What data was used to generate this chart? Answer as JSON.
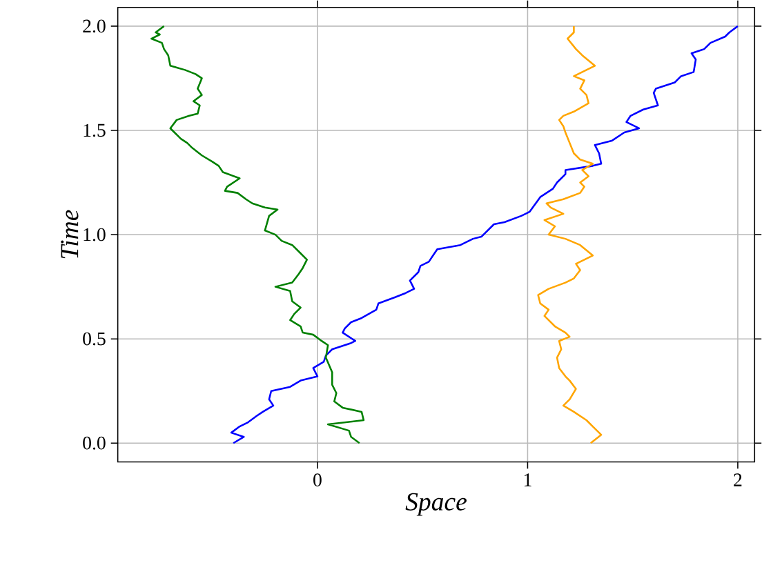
{
  "chart_data": {
    "type": "line",
    "xlabel": "Space",
    "ylabel": "Time",
    "xlim": [
      -0.95,
      2.08
    ],
    "ylim": [
      -0.09,
      2.09
    ],
    "xticks": [
      0,
      1,
      2
    ],
    "yticks": [
      {
        "value": 0,
        "label": "0.0"
      },
      {
        "value": 0.5,
        "label": "0.5"
      },
      {
        "value": 1,
        "label": "1.0"
      },
      {
        "value": 1.5,
        "label": "1.5"
      },
      {
        "value": 2,
        "label": "2.0"
      }
    ],
    "grid": true,
    "series": [
      {
        "color": "#0000ff",
        "x": [
          -0.4,
          -0.35,
          -0.41,
          -0.37,
          -0.33,
          -0.29,
          -0.26,
          -0.21,
          -0.23,
          -0.22,
          -0.13,
          -0.08,
          0.0,
          -0.02,
          0.03,
          0.04,
          0.07,
          0.16,
          0.18,
          0.12,
          0.13,
          0.16,
          0.21,
          0.28,
          0.29,
          0.37,
          0.42,
          0.46,
          0.44,
          0.48,
          0.49,
          0.53,
          0.55,
          0.57,
          0.68,
          0.74,
          0.78,
          0.81,
          0.84,
          0.89,
          0.97,
          1.01,
          1.06,
          1.12,
          1.14,
          1.18,
          1.18,
          1.31,
          1.35,
          1.34,
          1.32,
          1.4,
          1.46,
          1.53,
          1.47,
          1.49,
          1.55,
          1.62,
          1.6,
          1.61,
          1.7,
          1.73,
          1.79,
          1.8,
          1.78,
          1.84,
          1.87,
          1.94,
          1.96,
          2.0
        ],
        "values": [
          0.0,
          0.03,
          0.05,
          0.08,
          0.1,
          0.13,
          0.15,
          0.18,
          0.21,
          0.25,
          0.27,
          0.3,
          0.32,
          0.36,
          0.39,
          0.42,
          0.45,
          0.48,
          0.49,
          0.53,
          0.55,
          0.58,
          0.6,
          0.64,
          0.67,
          0.7,
          0.72,
          0.74,
          0.78,
          0.82,
          0.85,
          0.87,
          0.9,
          0.93,
          0.95,
          0.98,
          0.99,
          1.02,
          1.05,
          1.06,
          1.09,
          1.11,
          1.18,
          1.22,
          1.25,
          1.29,
          1.31,
          1.33,
          1.34,
          1.39,
          1.43,
          1.45,
          1.49,
          1.51,
          1.54,
          1.57,
          1.6,
          1.62,
          1.68,
          1.7,
          1.73,
          1.76,
          1.78,
          1.84,
          1.87,
          1.89,
          1.92,
          1.95,
          1.97,
          2.0
        ]
      },
      {
        "color": "#008000",
        "x": [
          0.2,
          0.16,
          0.15,
          0.05,
          0.22,
          0.21,
          0.12,
          0.08,
          0.09,
          0.07,
          0.07,
          0.04,
          0.05,
          0.02,
          -0.02,
          -0.07,
          -0.08,
          -0.13,
          -0.11,
          -0.08,
          -0.12,
          -0.13,
          -0.2,
          -0.12,
          -0.09,
          -0.07,
          -0.05,
          -0.08,
          -0.12,
          -0.17,
          -0.2,
          -0.25,
          -0.23,
          -0.19,
          -0.25,
          -0.31,
          -0.34,
          -0.38,
          -0.44,
          -0.43,
          -0.37,
          -0.45,
          -0.47,
          -0.5,
          -0.55,
          -0.6,
          -0.62,
          -0.65,
          -0.7,
          -0.67,
          -0.61,
          -0.57,
          -0.56,
          -0.59,
          -0.55,
          -0.57,
          -0.55,
          -0.58,
          -0.63,
          -0.7,
          -0.71,
          -0.73,
          -0.74,
          -0.79,
          -0.75,
          -0.77,
          -0.73
        ],
        "values": [
          0.0,
          0.03,
          0.06,
          0.09,
          0.11,
          0.15,
          0.17,
          0.2,
          0.24,
          0.28,
          0.34,
          0.41,
          0.47,
          0.49,
          0.52,
          0.53,
          0.56,
          0.59,
          0.62,
          0.65,
          0.68,
          0.73,
          0.75,
          0.77,
          0.81,
          0.84,
          0.88,
          0.91,
          0.95,
          0.97,
          1.0,
          1.02,
          1.09,
          1.12,
          1.13,
          1.15,
          1.17,
          1.2,
          1.21,
          1.23,
          1.27,
          1.3,
          1.33,
          1.35,
          1.38,
          1.42,
          1.44,
          1.46,
          1.51,
          1.55,
          1.57,
          1.58,
          1.62,
          1.64,
          1.67,
          1.7,
          1.75,
          1.77,
          1.79,
          1.81,
          1.86,
          1.89,
          1.92,
          1.94,
          1.96,
          1.97,
          2.0
        ]
      },
      {
        "color": "#ffa500",
        "x": [
          1.3,
          1.35,
          1.31,
          1.28,
          1.22,
          1.17,
          1.2,
          1.23,
          1.2,
          1.18,
          1.15,
          1.14,
          1.16,
          1.15,
          1.2,
          1.18,
          1.13,
          1.08,
          1.1,
          1.06,
          1.05,
          1.1,
          1.18,
          1.22,
          1.25,
          1.23,
          1.31,
          1.25,
          1.18,
          1.1,
          1.13,
          1.08,
          1.17,
          1.11,
          1.09,
          1.17,
          1.25,
          1.27,
          1.25,
          1.29,
          1.26,
          1.31,
          1.25,
          1.22,
          1.2,
          1.18,
          1.17,
          1.15,
          1.17,
          1.22,
          1.29,
          1.28,
          1.25,
          1.27,
          1.22,
          1.32,
          1.26,
          1.23,
          1.19,
          1.22,
          1.22
        ],
        "values": [
          0.0,
          0.04,
          0.08,
          0.11,
          0.15,
          0.18,
          0.21,
          0.26,
          0.3,
          0.32,
          0.36,
          0.41,
          0.45,
          0.49,
          0.51,
          0.53,
          0.56,
          0.61,
          0.64,
          0.67,
          0.71,
          0.74,
          0.77,
          0.79,
          0.83,
          0.86,
          0.9,
          0.95,
          0.98,
          1.0,
          1.04,
          1.07,
          1.1,
          1.13,
          1.15,
          1.17,
          1.2,
          1.23,
          1.25,
          1.28,
          1.31,
          1.34,
          1.36,
          1.39,
          1.44,
          1.49,
          1.52,
          1.55,
          1.57,
          1.59,
          1.63,
          1.67,
          1.7,
          1.74,
          1.76,
          1.81,
          1.86,
          1.89,
          1.94,
          1.97,
          2.0
        ]
      }
    ]
  }
}
